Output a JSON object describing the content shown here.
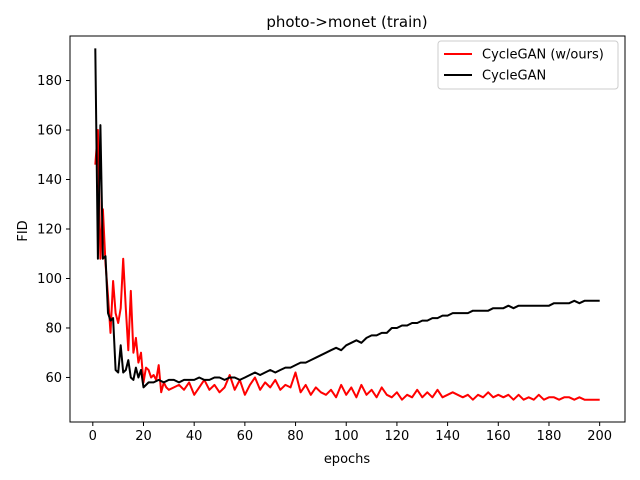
{
  "chart_data": {
    "type": "line",
    "title": "photo->monet (train)",
    "xlabel": "epochs",
    "ylabel": "FID",
    "xlim": [
      -9,
      210
    ],
    "ylim": [
      42,
      198
    ],
    "xticks": [
      0,
      20,
      40,
      60,
      80,
      100,
      120,
      140,
      160,
      180,
      200
    ],
    "yticks": [
      60,
      80,
      100,
      120,
      140,
      160,
      180
    ],
    "grid": false,
    "legend_position": "top-right",
    "series": [
      {
        "name": "CycleGAN (w/ours)",
        "color": "#ff0000",
        "points": [
          [
            1,
            146
          ],
          [
            2,
            160
          ],
          [
            3,
            108
          ],
          [
            4,
            128
          ],
          [
            5,
            106
          ],
          [
            6,
            93
          ],
          [
            7,
            78
          ],
          [
            8,
            99
          ],
          [
            9,
            86
          ],
          [
            10,
            82
          ],
          [
            11,
            88
          ],
          [
            12,
            108
          ],
          [
            13,
            88
          ],
          [
            14,
            71
          ],
          [
            15,
            95
          ],
          [
            16,
            70
          ],
          [
            17,
            76
          ],
          [
            18,
            66
          ],
          [
            19,
            70
          ],
          [
            20,
            58
          ],
          [
            21,
            64
          ],
          [
            22,
            63
          ],
          [
            23,
            60
          ],
          [
            24,
            61
          ],
          [
            25,
            59
          ],
          [
            26,
            65
          ],
          [
            27,
            54
          ],
          [
            28,
            58
          ],
          [
            29,
            56
          ],
          [
            30,
            55
          ],
          [
            32,
            56
          ],
          [
            34,
            57
          ],
          [
            36,
            55
          ],
          [
            38,
            58
          ],
          [
            40,
            53
          ],
          [
            42,
            56
          ],
          [
            44,
            59
          ],
          [
            46,
            55
          ],
          [
            48,
            57
          ],
          [
            50,
            54
          ],
          [
            52,
            56
          ],
          [
            54,
            61
          ],
          [
            56,
            55
          ],
          [
            58,
            59
          ],
          [
            60,
            53
          ],
          [
            62,
            57
          ],
          [
            64,
            60
          ],
          [
            66,
            55
          ],
          [
            68,
            58
          ],
          [
            70,
            56
          ],
          [
            72,
            59
          ],
          [
            74,
            55
          ],
          [
            76,
            57
          ],
          [
            78,
            56
          ],
          [
            80,
            62
          ],
          [
            82,
            54
          ],
          [
            84,
            57
          ],
          [
            86,
            53
          ],
          [
            88,
            56
          ],
          [
            90,
            54
          ],
          [
            92,
            53
          ],
          [
            94,
            55
          ],
          [
            96,
            52
          ],
          [
            98,
            57
          ],
          [
            100,
            53
          ],
          [
            102,
            56
          ],
          [
            104,
            52
          ],
          [
            106,
            57
          ],
          [
            108,
            53
          ],
          [
            110,
            55
          ],
          [
            112,
            52
          ],
          [
            114,
            56
          ],
          [
            116,
            53
          ],
          [
            118,
            52
          ],
          [
            120,
            54
          ],
          [
            122,
            51
          ],
          [
            124,
            53
          ],
          [
            126,
            52
          ],
          [
            128,
            55
          ],
          [
            130,
            52
          ],
          [
            132,
            54
          ],
          [
            134,
            52
          ],
          [
            136,
            55
          ],
          [
            138,
            52
          ],
          [
            140,
            53
          ],
          [
            142,
            54
          ],
          [
            144,
            53
          ],
          [
            146,
            52
          ],
          [
            148,
            53
          ],
          [
            150,
            51
          ],
          [
            152,
            53
          ],
          [
            154,
            52
          ],
          [
            156,
            54
          ],
          [
            158,
            52
          ],
          [
            160,
            53
          ],
          [
            162,
            52
          ],
          [
            164,
            53
          ],
          [
            166,
            51
          ],
          [
            168,
            53
          ],
          [
            170,
            51
          ],
          [
            172,
            52
          ],
          [
            174,
            51
          ],
          [
            176,
            53
          ],
          [
            178,
            51
          ],
          [
            180,
            52
          ],
          [
            182,
            52
          ],
          [
            184,
            51
          ],
          [
            186,
            52
          ],
          [
            188,
            52
          ],
          [
            190,
            51
          ],
          [
            192,
            52
          ],
          [
            194,
            51
          ],
          [
            196,
            51
          ],
          [
            198,
            51
          ],
          [
            200,
            51
          ]
        ]
      },
      {
        "name": "CycleGAN",
        "color": "#000000",
        "points": [
          [
            1,
            193
          ],
          [
            2,
            108
          ],
          [
            3,
            162
          ],
          [
            4,
            108
          ],
          [
            5,
            109
          ],
          [
            6,
            86
          ],
          [
            7,
            83
          ],
          [
            8,
            84
          ],
          [
            9,
            63
          ],
          [
            10,
            62
          ],
          [
            11,
            73
          ],
          [
            12,
            62
          ],
          [
            13,
            63
          ],
          [
            14,
            67
          ],
          [
            15,
            60
          ],
          [
            16,
            59
          ],
          [
            17,
            64
          ],
          [
            18,
            60
          ],
          [
            19,
            63
          ],
          [
            20,
            56
          ],
          [
            22,
            58
          ],
          [
            24,
            58
          ],
          [
            26,
            59
          ],
          [
            28,
            58
          ],
          [
            30,
            59
          ],
          [
            32,
            59
          ],
          [
            34,
            58
          ],
          [
            36,
            59
          ],
          [
            38,
            59
          ],
          [
            40,
            59
          ],
          [
            42,
            60
          ],
          [
            44,
            59
          ],
          [
            46,
            59
          ],
          [
            48,
            60
          ],
          [
            50,
            60
          ],
          [
            52,
            59
          ],
          [
            54,
            60
          ],
          [
            56,
            60
          ],
          [
            58,
            59
          ],
          [
            60,
            60
          ],
          [
            62,
            61
          ],
          [
            64,
            62
          ],
          [
            66,
            61
          ],
          [
            68,
            62
          ],
          [
            70,
            63
          ],
          [
            72,
            62
          ],
          [
            74,
            63
          ],
          [
            76,
            64
          ],
          [
            78,
            64
          ],
          [
            80,
            65
          ],
          [
            82,
            66
          ],
          [
            84,
            66
          ],
          [
            86,
            67
          ],
          [
            88,
            68
          ],
          [
            90,
            69
          ],
          [
            92,
            70
          ],
          [
            94,
            71
          ],
          [
            96,
            72
          ],
          [
            98,
            71
          ],
          [
            100,
            73
          ],
          [
            102,
            74
          ],
          [
            104,
            75
          ],
          [
            106,
            74
          ],
          [
            108,
            76
          ],
          [
            110,
            77
          ],
          [
            112,
            77
          ],
          [
            114,
            78
          ],
          [
            116,
            78
          ],
          [
            118,
            80
          ],
          [
            120,
            80
          ],
          [
            122,
            81
          ],
          [
            124,
            81
          ],
          [
            126,
            82
          ],
          [
            128,
            82
          ],
          [
            130,
            83
          ],
          [
            132,
            83
          ],
          [
            134,
            84
          ],
          [
            136,
            84
          ],
          [
            138,
            85
          ],
          [
            140,
            85
          ],
          [
            142,
            86
          ],
          [
            144,
            86
          ],
          [
            146,
            86
          ],
          [
            148,
            86
          ],
          [
            150,
            87
          ],
          [
            152,
            87
          ],
          [
            154,
            87
          ],
          [
            156,
            87
          ],
          [
            158,
            88
          ],
          [
            160,
            88
          ],
          [
            162,
            88
          ],
          [
            164,
            89
          ],
          [
            166,
            88
          ],
          [
            168,
            89
          ],
          [
            170,
            89
          ],
          [
            172,
            89
          ],
          [
            174,
            89
          ],
          [
            176,
            89
          ],
          [
            178,
            89
          ],
          [
            180,
            89
          ],
          [
            182,
            90
          ],
          [
            184,
            90
          ],
          [
            186,
            90
          ],
          [
            188,
            90
          ],
          [
            190,
            91
          ],
          [
            192,
            90
          ],
          [
            194,
            91
          ],
          [
            196,
            91
          ],
          [
            198,
            91
          ],
          [
            200,
            91
          ]
        ]
      }
    ]
  }
}
